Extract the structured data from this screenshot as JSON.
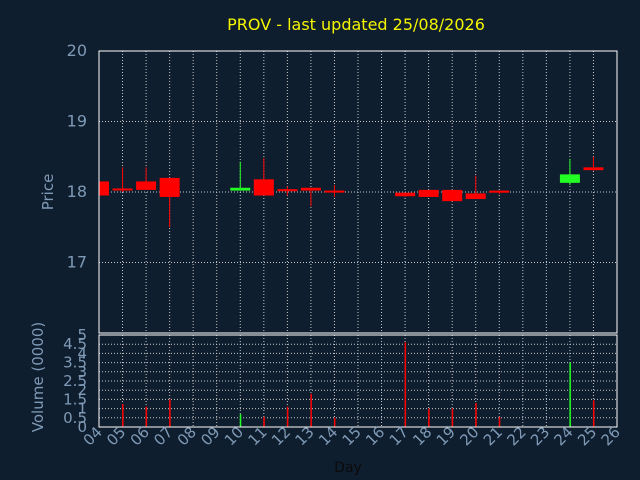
{
  "title": "PROV - last updated 25/08/2026",
  "colors": {
    "background": "#0f1e2e",
    "plot_background": "#0f1e2e",
    "grid": "#c8c8c8",
    "frame": "#ffffff",
    "title": "#f4f400",
    "axis_text": "#7f9ab6",
    "up": "#22ff22",
    "down": "#ff0000"
  },
  "chart_data": [
    {
      "type": "candlestick",
      "ylabel": "Price",
      "ylim": [
        16.0,
        20.0
      ],
      "yticks": [
        17,
        18,
        19,
        20
      ],
      "xlim": [
        4,
        26
      ],
      "grid": true,
      "candles": [
        {
          "day": 4,
          "open": 18.15,
          "high": 18.15,
          "low": 17.95,
          "close": 17.95
        },
        {
          "day": 5,
          "open": 18.05,
          "high": 18.35,
          "low": 18.0,
          "close": 18.03
        },
        {
          "day": 6,
          "open": 18.15,
          "high": 18.35,
          "low": 18.03,
          "close": 18.03
        },
        {
          "day": 7,
          "open": 18.2,
          "high": 18.2,
          "low": 17.5,
          "close": 17.93
        },
        {
          "day": 10,
          "open": 18.02,
          "high": 18.43,
          "low": 18.02,
          "close": 18.06
        },
        {
          "day": 11,
          "open": 18.18,
          "high": 18.48,
          "low": 17.95,
          "close": 17.95
        },
        {
          "day": 12,
          "open": 18.04,
          "high": 18.08,
          "low": 17.95,
          "close": 18.02
        },
        {
          "day": 13,
          "open": 18.06,
          "high": 18.06,
          "low": 17.8,
          "close": 18.02
        },
        {
          "day": 14,
          "open": 18.02,
          "high": 18.1,
          "low": 17.93,
          "close": 18.0
        },
        {
          "day": 17,
          "open": 17.99,
          "high": 17.99,
          "low": 17.93,
          "close": 17.94
        },
        {
          "day": 18,
          "open": 18.03,
          "high": 18.03,
          "low": 17.93,
          "close": 17.93
        },
        {
          "day": 19,
          "open": 18.03,
          "high": 18.03,
          "low": 17.87,
          "close": 17.87
        },
        {
          "day": 20,
          "open": 17.98,
          "high": 18.23,
          "low": 17.9,
          "close": 17.9
        },
        {
          "day": 21,
          "open": 18.02,
          "high": 18.02,
          "low": 17.97,
          "close": 17.99
        },
        {
          "day": 24,
          "open": 18.13,
          "high": 18.47,
          "low": 18.1,
          "close": 18.25
        },
        {
          "day": 25,
          "open": 18.35,
          "high": 18.5,
          "low": 18.3,
          "close": 18.31
        }
      ]
    },
    {
      "type": "bar",
      "ylabel": "Volume (0000)",
      "xlabel": "Day",
      "ylim": [
        0,
        5
      ],
      "yticks": [
        "0",
        "0.5",
        "1",
        "1.5",
        "2",
        "2.5",
        "3",
        "3.5",
        "4",
        "4.5",
        "5"
      ],
      "yticks_values": [
        0,
        0.5,
        1,
        1.5,
        2,
        2.5,
        3,
        3.5,
        4,
        4.5,
        5
      ],
      "categories": [
        "04",
        "05",
        "06",
        "07",
        "08",
        "09",
        "10",
        "11",
        "12",
        "13",
        "14",
        "15",
        "16",
        "17",
        "18",
        "19",
        "20",
        "21",
        "22",
        "23",
        "24",
        "25",
        "26"
      ],
      "bars": [
        {
          "day": 5,
          "value": 1.25,
          "dir": "down"
        },
        {
          "day": 6,
          "value": 1.1,
          "dir": "down"
        },
        {
          "day": 7,
          "value": 1.5,
          "dir": "down"
        },
        {
          "day": 10,
          "value": 0.7,
          "dir": "up"
        },
        {
          "day": 11,
          "value": 0.55,
          "dir": "down"
        },
        {
          "day": 12,
          "value": 1.1,
          "dir": "down"
        },
        {
          "day": 13,
          "value": 1.8,
          "dir": "down"
        },
        {
          "day": 14,
          "value": 0.5,
          "dir": "down"
        },
        {
          "day": 17,
          "value": 4.6,
          "dir": "down"
        },
        {
          "day": 18,
          "value": 1.0,
          "dir": "down"
        },
        {
          "day": 19,
          "value": 1.0,
          "dir": "down"
        },
        {
          "day": 20,
          "value": 1.3,
          "dir": "down"
        },
        {
          "day": 21,
          "value": 0.55,
          "dir": "down"
        },
        {
          "day": 24,
          "value": 3.5,
          "dir": "up"
        },
        {
          "day": 25,
          "value": 1.45,
          "dir": "down"
        }
      ]
    }
  ]
}
